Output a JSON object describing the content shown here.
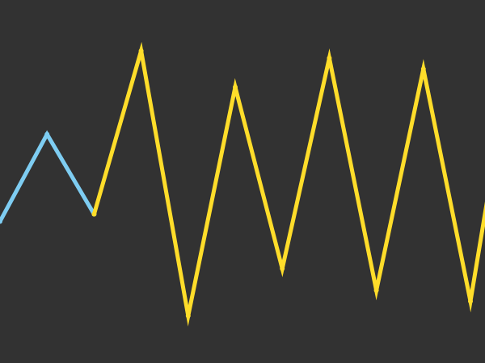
{
  "chart_data": {
    "type": "line",
    "background": "#323232",
    "grid": false,
    "axes_visible": false,
    "legend": "none",
    "y_lim": [
      0,
      1
    ],
    "series": [
      {
        "color": "#7ecdf2",
        "points": [
          {
            "x": 0,
            "y": 0.39
          },
          {
            "x": 1,
            "y": 0.63
          },
          {
            "x": 2,
            "y": 0.41
          }
        ]
      },
      {
        "color": "#ffdd2a",
        "points": [
          {
            "x": 2,
            "y": 0.41
          },
          {
            "x": 3,
            "y": 0.86
          },
          {
            "x": 4,
            "y": 0.13
          },
          {
            "x": 5,
            "y": 0.76
          },
          {
            "x": 6,
            "y": 0.26
          },
          {
            "x": 7,
            "y": 0.84
          },
          {
            "x": 8,
            "y": 0.2
          },
          {
            "x": 9,
            "y": 0.81
          },
          {
            "x": 10,
            "y": 0.17
          },
          {
            "x": 10.5,
            "y": 0.56
          }
        ]
      }
    ]
  }
}
